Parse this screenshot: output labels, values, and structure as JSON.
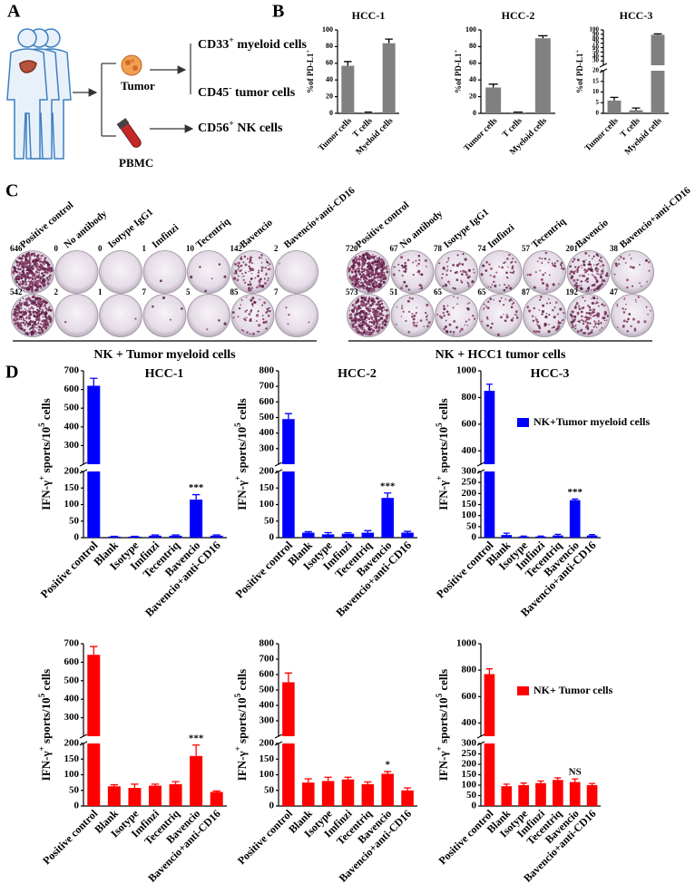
{
  "panel_labels": [
    "A",
    "B",
    "C",
    "D"
  ],
  "panel_a": {
    "tumor": "Tumor",
    "pbmc": "PBMC",
    "outputs": [
      {
        "main": "CD33",
        "sup": "+",
        "rest": " myeloid cells"
      },
      {
        "main": "CD45",
        "sup": "-",
        "rest": " tumor cells"
      },
      {
        "main": "CD56",
        "sup": "+",
        "rest": " NK cells"
      }
    ]
  },
  "panel_c": {
    "groups": [
      {
        "caption": "NK + Tumor myeloid cells",
        "labels": [
          "Positive control",
          "No antibody",
          "Isotype IgG1",
          "Imfinzi",
          "Tecentriq",
          "Bavencio",
          "Bavencio+anti-CD16"
        ],
        "counts": [
          [
            646,
            0,
            0,
            1,
            10,
            142,
            2
          ],
          [
            542,
            2,
            1,
            7,
            5,
            85,
            7
          ]
        ]
      },
      {
        "caption": "NK + HCC1 tumor cells",
        "labels": [
          "Positive control",
          "No antibody",
          "Isotype IgG1",
          "Imfinzi",
          "Tecentriq",
          "Bavencio",
          "Bavencio+anti-CD16"
        ],
        "counts": [
          [
            720,
            67,
            78,
            74,
            57,
            201,
            38
          ],
          [
            573,
            51,
            65,
            65,
            87,
            192,
            47
          ]
        ]
      }
    ]
  },
  "chart_data": [
    {
      "type": "bar",
      "title": "HCC-1",
      "ylabel": {
        "parts": [
          "%of PD-L1",
          "+"
        ],
        "sup": [
          false,
          true
        ]
      },
      "categories": [
        "Tumor cells",
        "T cells",
        "Myeloid cells"
      ],
      "series": [
        {
          "color": "#808080",
          "values": [
            57,
            1,
            84
          ],
          "errors": [
            5,
            0.5,
            5
          ]
        }
      ],
      "ylim": [
        0,
        100
      ],
      "yticks": [
        0,
        20,
        40,
        60,
        80,
        100
      ]
    },
    {
      "type": "bar",
      "title": "HCC-2",
      "ylabel": {
        "parts": [
          "%of PD-L1",
          "+"
        ],
        "sup": [
          false,
          true
        ]
      },
      "categories": [
        "Tumor cells",
        "T cells",
        "Myeloid cells"
      ],
      "series": [
        {
          "color": "#808080",
          "values": [
            31,
            1,
            90
          ],
          "errors": [
            4,
            0.5,
            3
          ]
        }
      ],
      "ylim": [
        0,
        100
      ],
      "yticks": [
        0,
        20,
        40,
        60,
        80,
        100
      ]
    },
    {
      "type": "bar",
      "title": "HCC-3",
      "ylabel": {
        "parts": [
          "%of PD-L1",
          "+"
        ],
        "sup": [
          false,
          true
        ]
      },
      "categories": [
        "Tumor cells",
        "T cells",
        "Myeloid cells"
      ],
      "series": [
        {
          "color": "#808080",
          "values": [
            6,
            1.5,
            89
          ],
          "errors": [
            1.5,
            1,
            2
          ]
        }
      ],
      "segments": [
        {
          "ylim": [
            0,
            20
          ],
          "yticks": [
            0,
            5,
            10,
            15,
            20
          ]
        },
        {
          "ylim": [
            20,
            100
          ],
          "yticks": [
            30,
            40,
            50,
            60,
            70,
            80,
            90,
            100
          ]
        }
      ]
    },
    {
      "type": "bar",
      "title": "HCC-1",
      "ylabel": {
        "parts": [
          "IFN-γ",
          "+",
          " sports/10",
          "5",
          " cells"
        ],
        "sup": [
          false,
          true,
          false,
          true,
          false
        ]
      },
      "categories": [
        "Positive control",
        "Blank",
        "Isotype",
        "Imfinzi",
        "Tecentriq",
        "Bavencio",
        "Bavencio+anti-CD16"
      ],
      "series": [
        {
          "color": "#0000ff",
          "values": [
            620,
            3,
            3,
            6,
            6,
            115,
            6
          ],
          "errors": [
            40,
            1,
            1,
            2,
            2,
            15,
            2
          ],
          "value_annotations": [
            null,
            null,
            null,
            null,
            null,
            "***",
            null
          ]
        }
      ],
      "segments": [
        {
          "ylim": [
            0,
            200
          ],
          "yticks": [
            0,
            50,
            100,
            150,
            200
          ]
        },
        {
          "ylim": [
            200,
            700
          ],
          "yticks": [
            300,
            400,
            500,
            600,
            700
          ]
        }
      ]
    },
    {
      "type": "bar",
      "title": "HCC-2",
      "ylabel": {
        "parts": [
          "IFN-γ",
          "+",
          " sports/10",
          "5",
          " cells"
        ],
        "sup": [
          false,
          true,
          false,
          true,
          false
        ]
      },
      "categories": [
        "Positive control",
        "Blank",
        "Isotype",
        "Imfinzi",
        "Tecentriq",
        "Bavencio",
        "Bavencio+anti-CD16"
      ],
      "series": [
        {
          "color": "#0000ff",
          "values": [
            490,
            15,
            10,
            12,
            15,
            120,
            15
          ],
          "errors": [
            35,
            3,
            5,
            3,
            6,
            15,
            4
          ],
          "value_annotations": [
            null,
            null,
            null,
            null,
            null,
            "***",
            null
          ]
        }
      ],
      "segments": [
        {
          "ylim": [
            0,
            200
          ],
          "yticks": [
            0,
            50,
            100,
            150,
            200
          ]
        },
        {
          "ylim": [
            200,
            800
          ],
          "yticks": [
            300,
            400,
            500,
            600,
            700,
            800
          ]
        }
      ]
    },
    {
      "type": "bar",
      "title": "HCC-3",
      "ylabel": {
        "parts": [
          "IFN-γ",
          "+",
          " sports/10",
          "5",
          " cells"
        ],
        "sup": [
          false,
          true,
          false,
          true,
          false
        ]
      },
      "categories": [
        "Positive control",
        "Blank",
        "Isotype",
        "Imfinzi",
        "Tecentriq",
        "Bavencio",
        "Bavencio+anti-CD16"
      ],
      "series": [
        {
          "name": "NK+Tumor myeloid cells",
          "color": "#0000ff",
          "values": [
            850,
            12,
            5,
            5,
            10,
            170,
            10
          ],
          "errors": [
            50,
            8,
            2,
            2,
            5,
            5,
            4
          ],
          "value_annotations": [
            null,
            null,
            null,
            null,
            null,
            "***",
            null
          ]
        }
      ],
      "segments": [
        {
          "ylim": [
            0,
            300
          ],
          "yticks": [
            0,
            50,
            100,
            150,
            200,
            250,
            300
          ]
        },
        {
          "ylim": [
            300,
            1000
          ],
          "yticks": [
            400,
            600,
            800,
            1000
          ]
        }
      ]
    },
    {
      "type": "bar",
      "ylabel": {
        "parts": [
          "IFN-γ",
          "+",
          " sports/10",
          "5",
          " cells"
        ],
        "sup": [
          false,
          true,
          false,
          true,
          false
        ]
      },
      "categories": [
        "Positive control",
        "Blank",
        "Isotype",
        "Imfinzi",
        "Tecentriq",
        "Bavencio",
        "Bavencio+anti-CD16"
      ],
      "series": [
        {
          "color": "#ff0000",
          "values": [
            640,
            63,
            58,
            65,
            70,
            160,
            45
          ],
          "errors": [
            45,
            5,
            12,
            5,
            8,
            35,
            3
          ],
          "value_annotations": [
            null,
            null,
            null,
            null,
            null,
            "***",
            null
          ]
        }
      ],
      "segments": [
        {
          "ylim": [
            0,
            200
          ],
          "yticks": [
            0,
            50,
            100,
            150,
            200
          ]
        },
        {
          "ylim": [
            200,
            700
          ],
          "yticks": [
            300,
            400,
            500,
            600,
            700
          ]
        }
      ]
    },
    {
      "type": "bar",
      "ylabel": {
        "parts": [
          "IFN-γ",
          "+",
          " sports/10",
          "5",
          " cells"
        ],
        "sup": [
          false,
          true,
          false,
          true,
          false
        ]
      },
      "categories": [
        "Positive control",
        "Blank",
        "Isotype",
        "Imfinzi",
        "Tecentriq",
        "Bavencio",
        "Bavencio+anti-CD16"
      ],
      "series": [
        {
          "color": "#ff0000",
          "values": [
            550,
            75,
            80,
            85,
            70,
            103,
            50
          ],
          "errors": [
            60,
            12,
            12,
            7,
            7,
            7,
            8
          ],
          "value_annotations": [
            null,
            null,
            null,
            null,
            null,
            "*",
            null
          ]
        }
      ],
      "segments": [
        {
          "ylim": [
            0,
            200
          ],
          "yticks": [
            0,
            50,
            100,
            150,
            200
          ]
        },
        {
          "ylim": [
            200,
            800
          ],
          "yticks": [
            300,
            400,
            500,
            600,
            700,
            800
          ]
        }
      ]
    },
    {
      "type": "bar",
      "ylabel": {
        "parts": [
          "IFN-γ",
          "+",
          " sports/10",
          "5",
          " cells"
        ],
        "sup": [
          false,
          true,
          false,
          true,
          false
        ]
      },
      "categories": [
        "Positive control",
        "Blank",
        "Isotype",
        "Imfinzi",
        "Tecentriq",
        "Bavencio",
        "Bavencio+anti-CD16"
      ],
      "series": [
        {
          "name": "NK+ Tumor cells",
          "color": "#ff0000",
          "values": [
            770,
            95,
            100,
            110,
            125,
            115,
            100
          ],
          "errors": [
            40,
            10,
            10,
            10,
            10,
            15,
            8
          ],
          "value_annotations": [
            null,
            null,
            null,
            null,
            null,
            "NS",
            null
          ]
        }
      ],
      "segments": [
        {
          "ylim": [
            0,
            300
          ],
          "yticks": [
            0,
            50,
            100,
            150,
            200,
            250,
            300
          ]
        },
        {
          "ylim": [
            300,
            1000
          ],
          "yticks": [
            400,
            600,
            800,
            1000
          ]
        }
      ]
    }
  ]
}
